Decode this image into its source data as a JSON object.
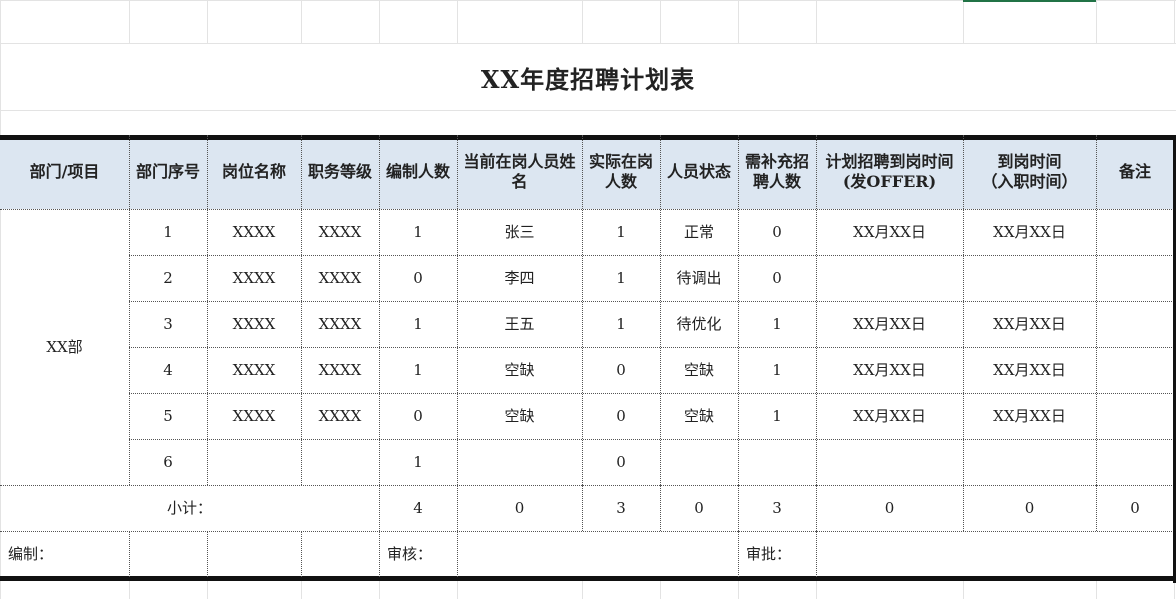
{
  "sheet": {
    "title": "XX年度招聘计划表",
    "accent_color": "#217346",
    "header_fill": "#dce6f1"
  },
  "table": {
    "headers": [
      "部门/项目",
      "部门序号",
      "岗位名称",
      "职务等级",
      "编制人数",
      "当前在岗人员姓名",
      "实际在岗人数",
      "人员状态",
      "需补充招聘人数",
      "计划招聘到岗时间(发OFFER)",
      "到岗时间\n（入职时间）",
      "备注"
    ],
    "department": "XX部",
    "rows": [
      [
        "1",
        "XXXX",
        "XXXX",
        "1",
        "张三",
        "1",
        "正常",
        "0",
        "XX月XX日",
        "XX月XX日",
        ""
      ],
      [
        "2",
        "XXXX",
        "XXXX",
        "0",
        "李四",
        "1",
        "待调出",
        "0",
        "",
        "",
        ""
      ],
      [
        "3",
        "XXXX",
        "XXXX",
        "1",
        "王五",
        "1",
        "待优化",
        "1",
        "XX月XX日",
        "XX月XX日",
        ""
      ],
      [
        "4",
        "XXXX",
        "XXXX",
        "1",
        "空缺",
        "0",
        "空缺",
        "1",
        "XX月XX日",
        "XX月XX日",
        ""
      ],
      [
        "5",
        "XXXX",
        "XXXX",
        "0",
        "空缺",
        "0",
        "空缺",
        "1",
        "XX月XX日",
        "XX月XX日",
        ""
      ],
      [
        "6",
        "",
        "",
        "1",
        "",
        "0",
        "",
        "",
        "",
        "",
        ""
      ]
    ],
    "subtotal": {
      "label": "小计：",
      "values": [
        "4",
        "0",
        "3",
        "0",
        "3",
        "0",
        "0",
        "0"
      ]
    },
    "signature": {
      "prepared": "编制：",
      "reviewed": "审核：",
      "approved": "审批："
    }
  }
}
